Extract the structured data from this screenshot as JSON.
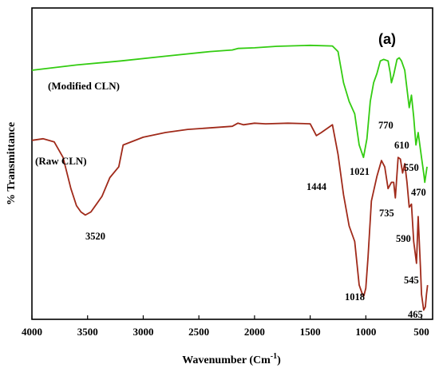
{
  "chart_data": {
    "type": "line",
    "panel_label": "(a)",
    "xlabel": "Wavenumber (Cm",
    "xlabel_sup": "-1",
    "xlabel_close": ")",
    "ylabel": "% Transmittance",
    "xlim": [
      4000,
      400
    ],
    "x_reversed": true,
    "x_ticks": [
      4000,
      3500,
      3000,
      2500,
      2000,
      1500,
      1000,
      500
    ],
    "grid": false,
    "legend": "none",
    "series": [
      {
        "name": "(Modified CLN)",
        "color": "#33cc11",
        "x": [
          4000,
          3600,
          3200,
          2800,
          2400,
          2200,
          2150,
          2000,
          1800,
          1500,
          1300,
          1250,
          1200,
          1150,
          1100,
          1060,
          1021,
          990,
          960,
          930,
          900,
          870,
          840,
          800,
          780,
          770,
          750,
          720,
          700,
          680,
          650,
          630,
          610,
          590,
          570,
          550,
          530,
          500,
          480,
          470,
          450
        ],
        "y": [
          0.8,
          0.817,
          0.83,
          0.845,
          0.86,
          0.865,
          0.87,
          0.872,
          0.877,
          0.88,
          0.878,
          0.86,
          0.76,
          0.7,
          0.66,
          0.56,
          0.52,
          0.58,
          0.7,
          0.76,
          0.79,
          0.83,
          0.835,
          0.83,
          0.79,
          0.76,
          0.785,
          0.835,
          0.84,
          0.83,
          0.8,
          0.74,
          0.68,
          0.72,
          0.65,
          0.56,
          0.6,
          0.52,
          0.47,
          0.44,
          0.49
        ]
      },
      {
        "name": "(Raw CLN)",
        "color": "#a02a1a",
        "x": [
          4000,
          3900,
          3800,
          3720,
          3650,
          3600,
          3560,
          3520,
          3470,
          3420,
          3370,
          3300,
          3220,
          3180,
          3000,
          2800,
          2600,
          2400,
          2200,
          2150,
          2100,
          2000,
          1900,
          1700,
          1500,
          1444,
          1400,
          1300,
          1250,
          1200,
          1150,
          1100,
          1060,
          1030,
          1018,
          1000,
          980,
          950,
          900,
          860,
          830,
          800,
          770,
          750,
          735,
          710,
          690,
          670,
          650,
          630,
          610,
          590,
          570,
          545,
          530,
          510,
          500,
          480,
          465,
          455,
          445
        ],
        "y": [
          0.575,
          0.58,
          0.57,
          0.52,
          0.42,
          0.365,
          0.345,
          0.335,
          0.345,
          0.37,
          0.395,
          0.455,
          0.49,
          0.56,
          0.585,
          0.6,
          0.61,
          0.615,
          0.62,
          0.63,
          0.625,
          0.63,
          0.628,
          0.63,
          0.628,
          0.59,
          0.6,
          0.625,
          0.53,
          0.4,
          0.3,
          0.25,
          0.11,
          0.08,
          0.075,
          0.1,
          0.2,
          0.38,
          0.46,
          0.51,
          0.49,
          0.42,
          0.44,
          0.44,
          0.39,
          0.52,
          0.515,
          0.47,
          0.5,
          0.44,
          0.36,
          0.37,
          0.25,
          0.18,
          0.33,
          0.17,
          0.08,
          0.03,
          0.04,
          0.08,
          0.11
        ]
      }
    ],
    "annotations": [
      {
        "text": "770"
      },
      {
        "text": "1021"
      },
      {
        "text": "610"
      },
      {
        "text": "550"
      },
      {
        "text": "470"
      },
      {
        "text": "1444"
      },
      {
        "text": "735"
      },
      {
        "text": "3520"
      },
      {
        "text": "590"
      },
      {
        "text": "1018"
      },
      {
        "text": "545"
      },
      {
        "text": "465"
      }
    ]
  }
}
